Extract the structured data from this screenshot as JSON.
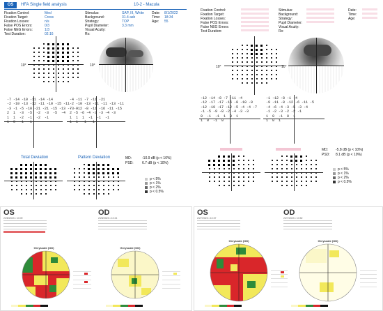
{
  "header": {
    "eye": "OS",
    "title": "HFA Single field analysis",
    "program": "10-2 - Macula"
  },
  "left_info": {
    "c1": [
      "Fixation Control:",
      "Fixation Target:",
      "Fixation Losses:",
      "False POS Errors:",
      "False NEG Errors:",
      "Test Duration:"
    ],
    "v1": [
      "Med",
      "Cross",
      "n/s",
      "0/3",
      "1/3",
      "02:16"
    ],
    "c2": [
      "Stimulus:",
      "Background:",
      "Strategy:",
      "Pupil Diameter:",
      "Visual Acuity:",
      "Rx:"
    ],
    "v2": [
      "SAP, III, White",
      "31.4 asb",
      "TOP",
      "3.3 mm",
      "",
      ""
    ],
    "c3": [
      "Date:",
      "Time:",
      "Age:"
    ],
    "v3": [
      "8/1/2022",
      "18:34",
      "55"
    ]
  },
  "right_info": {
    "c1": [
      "Fixation Control:",
      "Fixation Target:",
      "Fixation Losses:",
      "False POS Errors:",
      "False NEG Errors:",
      "Test Duration:"
    ],
    "c2": [
      "Stimulus:",
      "Background:",
      "Strategy:",
      "Pupil Diameter:",
      "Visual Acuity:",
      "Rx:"
    ],
    "c3": [
      "Date:",
      "Time:",
      "Age:"
    ]
  },
  "axis_label": "10°",
  "left_total_rows": [
    "-7 -14 -10 -11 -14 -14",
    "-2 -10 -13 -12 -11 -10 -15 -11",
    "-3 -1 -5 -10 -21 -21 -15 -13 -7 -9",
    "2  1  -3  -5  -2  -3  -5  -4",
    "1  1  -2  -1  -2  -1",
    "1  0  -1  -1"
  ],
  "left_pattern_rows": [
    "-4 -11 -7 -11 -21",
    "-2 -10 -13 -11 -11 -13 -11",
    "-3 -12 -8 -11 -16 -11 -15",
    "2 -5 -6 -4 -3 -3 -4 -3",
    "1  1  1  -1  -1  -1",
    "1  1  -1  -1"
  ],
  "right_total_rows": [
    "-12 -14 -8 -7 -11 -4",
    "-12 -17 -17 -16 -8 -10 -9",
    "-12 -19 -17 -12 -5 -4 -4 -7",
    "-1 -5 -9 -8 -2 -4 -3 -3",
    "0  -1  -1  1  0  1",
    "1  0  -1  0"
  ],
  "right_pattern_rows": [
    "-1 -12 -8 -1 -4",
    "-9 -11 -8 -12 -6 -11 -5",
    "-4 -6 -4 -3 -5 -3 -4",
    "-1 -2 -3 -2 -2 -1",
    "1  0  -1  0  1",
    "1  0  1"
  ],
  "left_indices": {
    "md_label": "MD:",
    "md": "-10.9 dB (p < 10%)",
    "psd_label": "PSD:",
    "psd": "6.7 dB (p < 10%)"
  },
  "right_indices": {
    "md_label": "MD:",
    "md": "-5.8 dB (p < 10%)",
    "psd_label": "PSD:",
    "psd": "8.1 dB (p < 10%)"
  },
  "plot_titles": {
    "total": "Total Deviation",
    "pattern": "Pattern Deviation"
  },
  "legend": [
    "p < 5%",
    "p < 1%",
    "p < 2%",
    "p < 0.5%"
  ],
  "reports": [
    {
      "eye": "OS",
      "sub": "2/28/2023 • 10:09",
      "caption": "Greyscale (OD)"
    },
    {
      "eye": "OD",
      "sub": "2/28/2023 • 10:21",
      "caption": "Greyscale (OD)"
    },
    {
      "eye": "OS",
      "sub": "2/27/2023 • 10:37",
      "caption": "Greyscale (OD)"
    },
    {
      "eye": "OD",
      "sub": "2/27/2023 • 10:52",
      "caption": "Greyscale (OD)"
    }
  ],
  "colors": {
    "accent": "#1a63b8",
    "pink": "#e2a0b8",
    "red": "#d9262a",
    "green": "#2e8b3a",
    "yellow": "#f2e85a"
  }
}
